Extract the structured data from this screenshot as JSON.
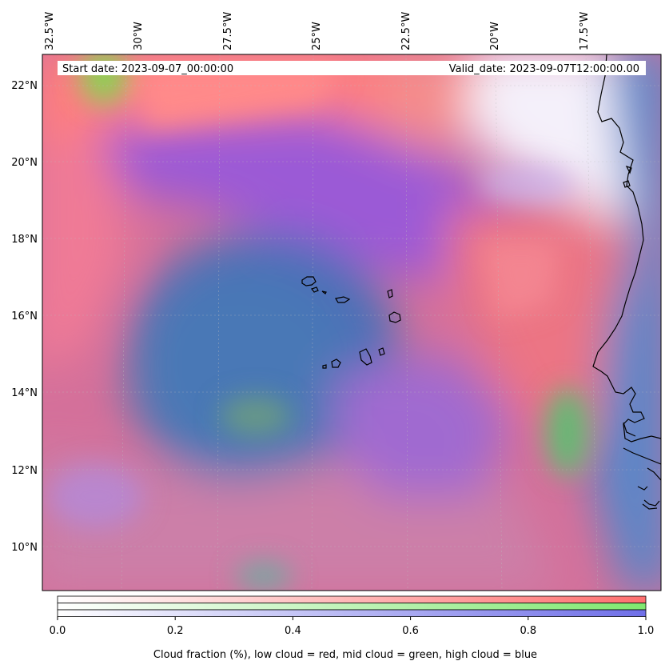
{
  "map": {
    "start_date": "Start date: 2023-09-07_00:00:00",
    "valid_date": "Valid_date: 2023-09-07T12:00:00.00",
    "lon_labels": [
      "32.5°W",
      "30°W",
      "27.5°W",
      "25°W",
      "22.5°W",
      "20°W",
      "17.5°W"
    ],
    "lat_labels": [
      "22°N",
      "20°N",
      "18°N",
      "16°N",
      "14°N",
      "12°N",
      "10°N"
    ]
  },
  "colorbar": {
    "ticks": [
      "0.0",
      "0.2",
      "0.4",
      "0.6",
      "0.8",
      "1.0"
    ],
    "label": "Cloud fraction (%), low cloud = red, mid cloud = green, high cloud = blue",
    "colors": {
      "low": "#ff6f6f",
      "mid": "#7fe86f",
      "high": "#6f6fe8"
    }
  }
}
